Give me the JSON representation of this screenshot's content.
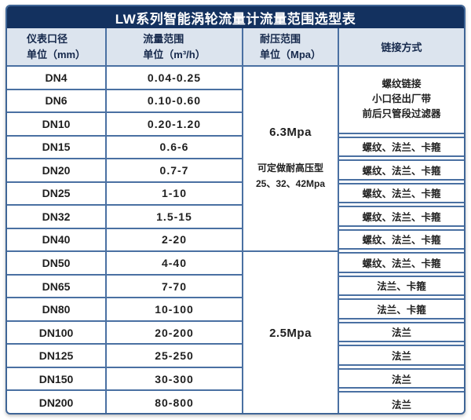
{
  "title": "LW系列智能涡轮流量计流量范围选型表",
  "header": {
    "col1": [
      "仪表口径",
      "单位（mm）"
    ],
    "col2": [
      "流量范围",
      "单位（m³/h）"
    ],
    "col3": [
      "耐压范围",
      "单位（Mpa）"
    ],
    "col4": [
      "链接方式"
    ]
  },
  "rows": [
    {
      "dn": "DN4",
      "flow": "0.04-0.25"
    },
    {
      "dn": "DN6",
      "flow": "0.10-0.60"
    },
    {
      "dn": "DN10",
      "flow": "0.20-1.20"
    },
    {
      "dn": "DN15",
      "flow": "0.6-6"
    },
    {
      "dn": "DN20",
      "flow": "0.7-7"
    },
    {
      "dn": "DN25",
      "flow": "1-10"
    },
    {
      "dn": "DN32",
      "flow": "1.5-15"
    },
    {
      "dn": "DN40",
      "flow": "2-20"
    },
    {
      "dn": "DN50",
      "flow": "4-40"
    },
    {
      "dn": "DN65",
      "flow": "7-70"
    },
    {
      "dn": "DN80",
      "flow": "10-100"
    },
    {
      "dn": "DN100",
      "flow": "20-200"
    },
    {
      "dn": "DN125",
      "flow": "25-250"
    },
    {
      "dn": "DN150",
      "flow": "30-300"
    },
    {
      "dn": "DN200",
      "flow": "80-800"
    }
  ],
  "pressure": {
    "group1": {
      "value": "6.3Mpa",
      "note1": "可定做耐高压型",
      "note2": "25、32、42Mpa",
      "covers_rows": "DN4-DN40",
      "row_span": 8
    },
    "group2": {
      "value": "2.5Mpa",
      "covers_rows": "DN50-DN200",
      "row_span": 7
    }
  },
  "links": [
    {
      "line1": "螺纹链接",
      "line2": "小口径出厂带",
      "line3": "前后只管段过滤器",
      "covers_rows": "DN4-DN10",
      "row_span": 3
    },
    {
      "line1": "螺纹、法兰、卡箍",
      "covers_rows": "DN15",
      "row_span": 1
    },
    {
      "line1": "螺纹、法兰、卡箍",
      "covers_rows": "DN20",
      "row_span": 1
    },
    {
      "line1": "螺纹、法兰、卡箍",
      "covers_rows": "DN25",
      "row_span": 1
    },
    {
      "line1": "螺纹、法兰、卡箍",
      "covers_rows": "DN32",
      "row_span": 1
    },
    {
      "line1": "螺纹、法兰、卡箍",
      "covers_rows": "DN40",
      "row_span": 1
    },
    {
      "line1": "螺纹、法兰、卡箍",
      "covers_rows": "DN50",
      "row_span": 1
    },
    {
      "line1": "法兰、卡箍",
      "covers_rows": "DN65",
      "row_span": 1
    },
    {
      "line1": "法兰、卡箍",
      "covers_rows": "DN80",
      "row_span": 1
    },
    {
      "line1": "法兰",
      "covers_rows": "DN100",
      "row_span": 1
    },
    {
      "line1": "法兰",
      "covers_rows": "DN125",
      "row_span": 1
    },
    {
      "line1": "法兰",
      "covers_rows": "DN150",
      "row_span": 1
    },
    {
      "line1": "法兰",
      "covers_rows": "DN200",
      "row_span": 1
    }
  ],
  "colors": {
    "title_bg": "#13315f",
    "title_text": "#ffffff",
    "header_bg": "#dce4ee",
    "header_text": "#15284b",
    "grid_line": "#4a70a2",
    "outer_border": "#3f6596",
    "cell_text": "#1f1f1f"
  }
}
